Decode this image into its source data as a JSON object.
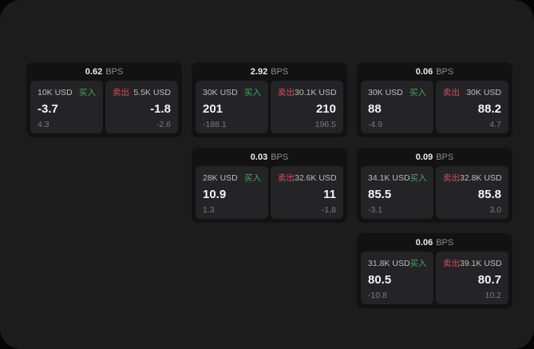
{
  "labels": {
    "bps": "BPS",
    "buy": "买入",
    "sell": "卖出"
  },
  "colors": {
    "buy_green": "#4aa55e",
    "sell_red": "#d14b5c",
    "panel_bg": "#1c1c1d",
    "card_bg": "#121213",
    "pane_bg": "#242426"
  },
  "cards": [
    {
      "bps": "0.62",
      "buy": {
        "amount": "10K USD",
        "price": "-3.7",
        "delta": "4.3"
      },
      "sell": {
        "amount": "5.5K USD",
        "price": "-1.8",
        "delta": "-2.6"
      }
    },
    {
      "bps": "2.92",
      "buy": {
        "amount": "30K USD",
        "price": "201",
        "delta": "-188.1"
      },
      "sell": {
        "amount": "30.1K USD",
        "price": "210",
        "delta": "196.5"
      }
    },
    {
      "bps": "0.06",
      "buy": {
        "amount": "30K USD",
        "price": "88",
        "delta": "-4.9"
      },
      "sell": {
        "amount": "30K USD",
        "price": "88.2",
        "delta": "4.7"
      }
    },
    {
      "bps": "0.03",
      "buy": {
        "amount": "28K USD",
        "price": "10.9",
        "delta": "1.3"
      },
      "sell": {
        "amount": "32.6K USD",
        "price": "11",
        "delta": "-1.8"
      }
    },
    {
      "bps": "0.09",
      "buy": {
        "amount": "34.1K USD",
        "price": "85.5",
        "delta": "-3.1"
      },
      "sell": {
        "amount": "32.8K USD",
        "price": "85.8",
        "delta": "3.0"
      }
    },
    {
      "bps": "0.06",
      "buy": {
        "amount": "31.8K USD",
        "price": "80.5",
        "delta": "-10.8"
      },
      "sell": {
        "amount": "39.1K USD",
        "price": "80.7",
        "delta": "10.2"
      }
    }
  ]
}
